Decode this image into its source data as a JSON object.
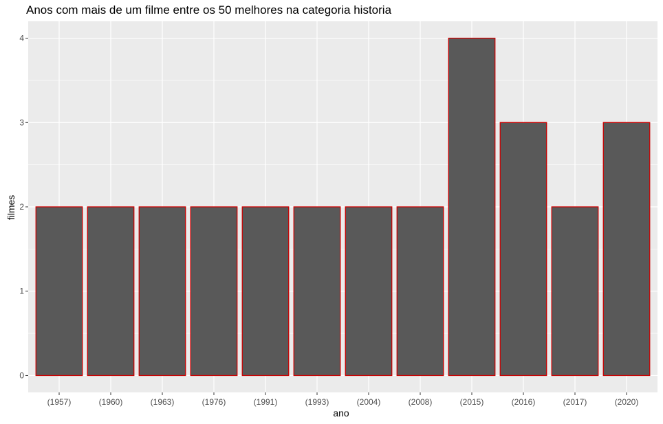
{
  "chart_data": {
    "type": "bar",
    "title": "Anos com mais de um filme entre os 50 melhores na categoria historia",
    "xlabel": "ano",
    "ylabel": "filmes",
    "categories": [
      "(1957)",
      "(1960)",
      "(1963)",
      "(1976)",
      "(1991)",
      "(1993)",
      "(2004)",
      "(2008)",
      "(2015)",
      "(2016)",
      "(2017)",
      "(2020)"
    ],
    "values": [
      2,
      2,
      2,
      2,
      2,
      2,
      2,
      2,
      4,
      3,
      2,
      3
    ],
    "ylim": [
      0,
      4
    ],
    "yticks": [
      0,
      1,
      2,
      3,
      4
    ],
    "grid": true,
    "colors": {
      "panel": "#ebebeb",
      "grid": "#ffffff",
      "bar_fill": "#595959",
      "bar_outline": "#cc0000",
      "tick_text": "#4d4d4d"
    }
  }
}
